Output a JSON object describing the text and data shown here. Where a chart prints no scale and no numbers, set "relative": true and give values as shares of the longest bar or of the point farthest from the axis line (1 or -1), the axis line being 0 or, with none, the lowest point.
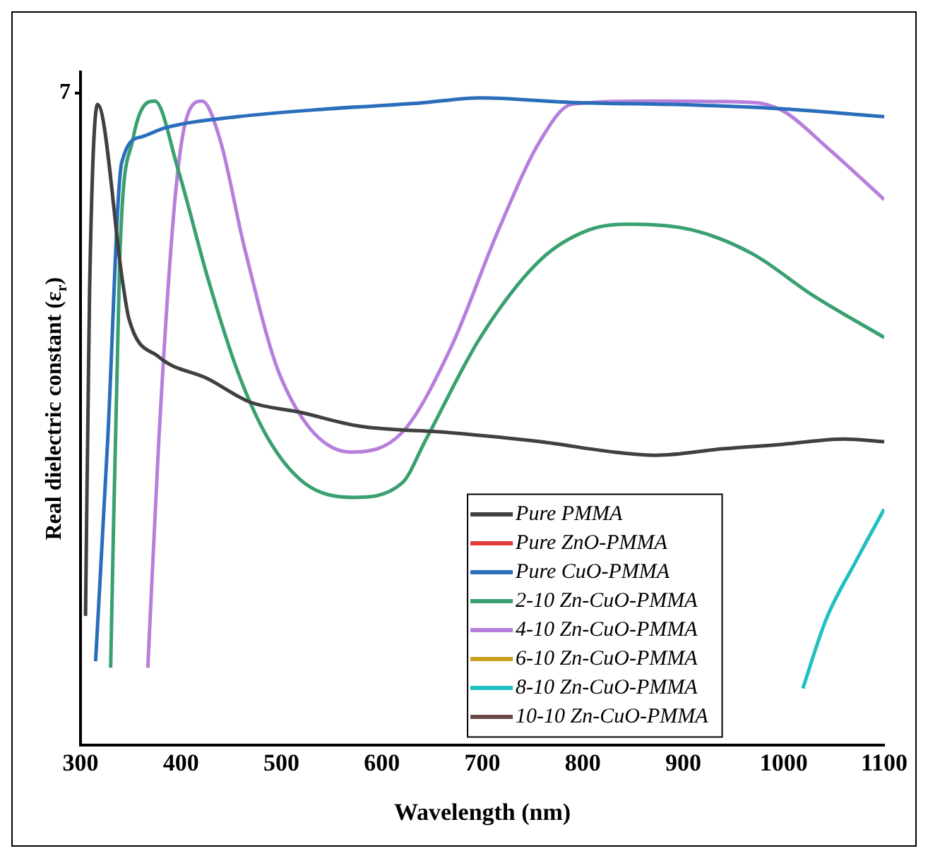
{
  "chart_data": {
    "type": "line",
    "xlabel": "Wavelength (nm)",
    "ylabel": "Real dielectric constant (ε$_{r}$)",
    "relative": true,
    "xlim": [
      300,
      1100
    ],
    "xticks": [
      300,
      400,
      500,
      600,
      700,
      800,
      900,
      1000,
      1100
    ],
    "grid": false,
    "legend": "bottom",
    "marker": "none",
    "line_style": "solid",
    "annotations": [
      "7"
    ],
    "series": [
      {
        "name": "Pure PMMA",
        "color": "#404040",
        "x": [
          305,
          309,
          317,
          342,
          348,
          378,
          427,
          469,
          517,
          578,
          668,
          758,
          831,
          873,
          939,
          999,
          1060,
          1100
        ],
        "values": [
          0.2,
          0.7,
          0.99,
          0.715,
          0.66,
          0.6,
          0.566,
          0.53,
          0.515,
          0.493,
          0.483,
          0.469,
          0.453,
          0.448,
          0.458,
          0.465,
          0.473,
          0.469
        ]
      },
      {
        "name": "Pure ZnO-PMMA",
        "color": "#e03c3c"
      },
      {
        "name": "Pure CuO-PMMA",
        "color": "#2a6ebb",
        "x": [
          315,
          327,
          341,
          361,
          385,
          457,
          547,
          638,
          698,
          789,
          909,
          999,
          1100
        ],
        "values": [
          0.13,
          0.47,
          0.9,
          0.94,
          0.954,
          0.971,
          0.983,
          0.992,
          1.0,
          0.993,
          0.989,
          0.983,
          0.971
        ]
      },
      {
        "name": "2-10 Zn-CuO-PMMA",
        "color": "#3aa070",
        "x": [
          330,
          339,
          352,
          374,
          397,
          427,
          457,
          487,
          523,
          571,
          620,
          644,
          698,
          758,
          806,
          848,
          909,
          969,
          1029,
          1100
        ],
        "values": [
          0.12,
          0.75,
          0.935,
          0.995,
          0.89,
          0.72,
          0.575,
          0.473,
          0.405,
          0.383,
          0.405,
          0.473,
          0.63,
          0.75,
          0.796,
          0.805,
          0.796,
          0.759,
          0.695,
          0.63
        ]
      },
      {
        "name": "4-10 Zn-CuO-PMMA",
        "color": "#b77fdb",
        "x": [
          367,
          378,
          394,
          406,
          421,
          439,
          463,
          500,
          569,
          620,
          668,
          716,
          758,
          789,
          873,
          969,
          999,
          1042,
          1100
        ],
        "values": [
          0.12,
          0.473,
          0.843,
          0.971,
          0.995,
          0.935,
          0.77,
          0.566,
          0.453,
          0.483,
          0.612,
          0.796,
          0.935,
          0.99,
          0.995,
          0.993,
          0.98,
          0.925,
          0.843
        ]
      },
      {
        "name": "6-10 Zn-CuO-PMMA",
        "color": "#c8a020"
      },
      {
        "name": "8-10 Zn-CuO-PMMA",
        "color": "#20c0c0",
        "x": [
          1019,
          1042,
          1072,
          1100
        ],
        "values": [
          0.088,
          0.194,
          0.285,
          0.365
        ]
      },
      {
        "name": "10-10 Zn-CuO-PMMA",
        "color": "#6a4a48"
      }
    ]
  }
}
